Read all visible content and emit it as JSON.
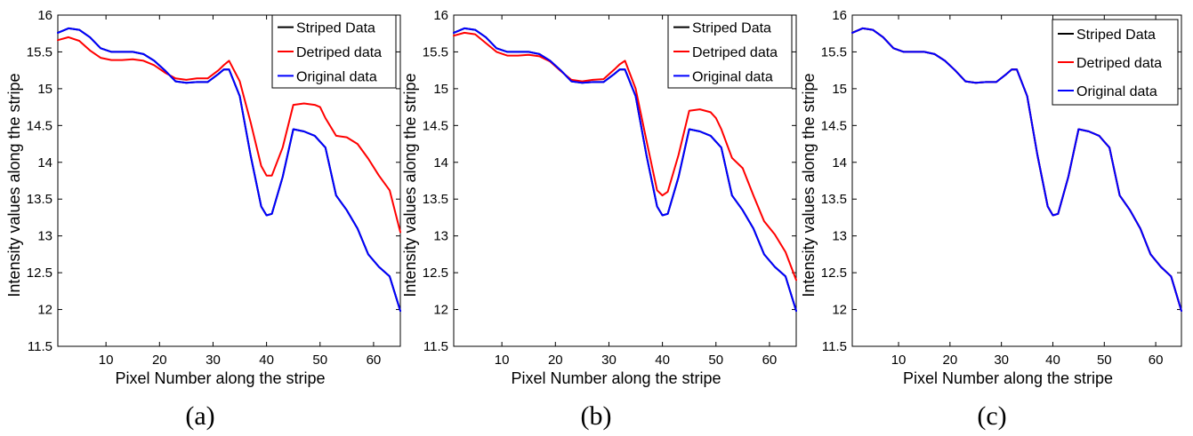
{
  "chart_data": [
    {
      "type": "line",
      "caption": "(a)",
      "xlabel": "Pixel Number along the stripe",
      "ylabel": "Intensity values along the stripe",
      "xlim": [
        1,
        65
      ],
      "ylim": [
        11.5,
        16
      ],
      "xticks": [
        10,
        20,
        30,
        40,
        50,
        60
      ],
      "yticks": [
        11.5,
        12,
        12.5,
        13,
        13.5,
        14,
        14.5,
        15,
        15.5,
        16
      ],
      "legend_position": "top-right",
      "x": [
        1,
        3,
        5,
        7,
        9,
        11,
        13,
        15,
        17,
        19,
        21,
        23,
        25,
        27,
        29,
        31,
        32,
        33,
        35,
        37,
        39,
        40,
        41,
        43,
        45,
        47,
        49,
        50,
        51,
        53,
        55,
        57,
        59,
        61,
        63,
        65
      ],
      "series": [
        {
          "name": "Striped Data",
          "color": "#000000",
          "values": [
            15.76,
            15.82,
            15.8,
            15.7,
            15.55,
            15.5,
            15.5,
            15.5,
            15.47,
            15.38,
            15.25,
            15.1,
            15.08,
            15.09,
            15.09,
            15.2,
            15.26,
            15.26,
            14.9,
            14.1,
            13.4,
            13.28,
            13.3,
            13.8,
            14.45,
            14.42,
            14.36,
            14.28,
            14.2,
            13.55,
            13.35,
            13.1,
            12.75,
            12.58,
            12.45,
            11.98
          ]
        },
        {
          "name": "Detriped data",
          "color": "#ff0000",
          "values": [
            15.66,
            15.7,
            15.65,
            15.52,
            15.42,
            15.39,
            15.39,
            15.4,
            15.38,
            15.32,
            15.22,
            15.14,
            15.12,
            15.14,
            15.14,
            15.25,
            15.32,
            15.38,
            15.1,
            14.55,
            13.95,
            13.82,
            13.82,
            14.2,
            14.78,
            14.8,
            14.78,
            14.75,
            14.6,
            14.36,
            14.34,
            14.25,
            14.05,
            13.82,
            13.62,
            13.05
          ]
        },
        {
          "name": "Original data",
          "color": "#0000ff",
          "values": [
            15.76,
            15.82,
            15.8,
            15.7,
            15.55,
            15.5,
            15.5,
            15.5,
            15.47,
            15.38,
            15.25,
            15.1,
            15.08,
            15.09,
            15.09,
            15.2,
            15.26,
            15.26,
            14.9,
            14.1,
            13.4,
            13.28,
            13.3,
            13.8,
            14.45,
            14.42,
            14.36,
            14.28,
            14.2,
            13.55,
            13.35,
            13.1,
            12.75,
            12.58,
            12.45,
            11.98
          ]
        }
      ]
    },
    {
      "type": "line",
      "caption": "(b)",
      "xlabel": "Pixel Number along the stripe",
      "ylabel": "Intensity values along the stripe",
      "xlim": [
        1,
        65
      ],
      "ylim": [
        11.5,
        16
      ],
      "xticks": [
        10,
        20,
        30,
        40,
        50,
        60
      ],
      "yticks": [
        11.5,
        12,
        12.5,
        13,
        13.5,
        14,
        14.5,
        15,
        15.5,
        16
      ],
      "legend_position": "top-right",
      "x": [
        1,
        3,
        5,
        7,
        9,
        11,
        13,
        15,
        17,
        19,
        21,
        23,
        25,
        27,
        29,
        31,
        32,
        33,
        35,
        37,
        39,
        40,
        41,
        43,
        45,
        47,
        49,
        50,
        51,
        53,
        55,
        57,
        59,
        61,
        63,
        65
      ],
      "series": [
        {
          "name": "Striped Data",
          "color": "#000000",
          "values": [
            15.76,
            15.82,
            15.8,
            15.7,
            15.55,
            15.5,
            15.5,
            15.5,
            15.47,
            15.38,
            15.25,
            15.1,
            15.08,
            15.09,
            15.09,
            15.2,
            15.26,
            15.26,
            14.9,
            14.1,
            13.4,
            13.28,
            13.3,
            13.8,
            14.45,
            14.42,
            14.36,
            14.28,
            14.2,
            13.55,
            13.35,
            13.1,
            12.75,
            12.58,
            12.45,
            11.98
          ]
        },
        {
          "name": "Detriped data",
          "color": "#ff0000",
          "values": [
            15.72,
            15.76,
            15.74,
            15.62,
            15.5,
            15.45,
            15.45,
            15.46,
            15.44,
            15.37,
            15.24,
            15.12,
            15.1,
            15.12,
            15.13,
            15.26,
            15.33,
            15.38,
            15.0,
            14.3,
            13.62,
            13.55,
            13.6,
            14.1,
            14.7,
            14.72,
            14.68,
            14.6,
            14.45,
            14.06,
            13.92,
            13.55,
            13.2,
            13.02,
            12.78,
            12.4
          ]
        },
        {
          "name": "Original data",
          "color": "#0000ff",
          "values": [
            15.76,
            15.82,
            15.8,
            15.7,
            15.55,
            15.5,
            15.5,
            15.5,
            15.47,
            15.38,
            15.25,
            15.1,
            15.08,
            15.09,
            15.09,
            15.2,
            15.26,
            15.26,
            14.9,
            14.1,
            13.4,
            13.28,
            13.3,
            13.8,
            14.45,
            14.42,
            14.36,
            14.28,
            14.2,
            13.55,
            13.35,
            13.1,
            12.75,
            12.58,
            12.45,
            11.98
          ]
        }
      ]
    },
    {
      "type": "line",
      "caption": "(c)",
      "xlabel": "Pixel Number along the stripe",
      "ylabel": "Intensity values along the stripe",
      "xlim": [
        1,
        65
      ],
      "ylim": [
        11.5,
        16
      ],
      "xticks": [
        10,
        20,
        30,
        40,
        50,
        60
      ],
      "yticks": [
        11.5,
        12,
        12.5,
        13,
        13.5,
        14,
        14.5,
        15,
        15.5,
        16
      ],
      "legend_position": "top-right",
      "x": [
        1,
        3,
        5,
        7,
        9,
        11,
        13,
        15,
        17,
        19,
        21,
        23,
        25,
        27,
        29,
        31,
        32,
        33,
        35,
        37,
        39,
        40,
        41,
        43,
        45,
        47,
        49,
        50,
        51,
        53,
        55,
        57,
        59,
        61,
        63,
        65
      ],
      "series": [
        {
          "name": "Striped Data",
          "color": "#000000",
          "values": [
            15.76,
            15.82,
            15.8,
            15.7,
            15.55,
            15.5,
            15.5,
            15.5,
            15.47,
            15.38,
            15.25,
            15.1,
            15.08,
            15.09,
            15.09,
            15.2,
            15.26,
            15.26,
            14.9,
            14.1,
            13.4,
            13.28,
            13.3,
            13.8,
            14.45,
            14.42,
            14.36,
            14.28,
            14.2,
            13.55,
            13.35,
            13.1,
            12.75,
            12.58,
            12.45,
            11.98
          ]
        },
        {
          "name": "Detriped data",
          "color": "#ff0000",
          "values": [
            15.76,
            15.82,
            15.8,
            15.7,
            15.55,
            15.5,
            15.5,
            15.5,
            15.47,
            15.38,
            15.25,
            15.1,
            15.08,
            15.09,
            15.09,
            15.2,
            15.26,
            15.26,
            14.9,
            14.1,
            13.4,
            13.28,
            13.3,
            13.8,
            14.45,
            14.42,
            14.36,
            14.28,
            14.2,
            13.55,
            13.35,
            13.1,
            12.75,
            12.58,
            12.45,
            11.98
          ]
        },
        {
          "name": "Original data",
          "color": "#0000ff",
          "values": [
            15.76,
            15.82,
            15.8,
            15.7,
            15.55,
            15.5,
            15.5,
            15.5,
            15.47,
            15.38,
            15.25,
            15.1,
            15.08,
            15.09,
            15.09,
            15.2,
            15.26,
            15.26,
            14.9,
            14.1,
            13.4,
            13.28,
            13.3,
            13.8,
            14.45,
            14.42,
            14.36,
            14.28,
            14.2,
            13.55,
            13.35,
            13.1,
            12.75,
            12.58,
            12.45,
            11.98
          ]
        }
      ]
    }
  ]
}
